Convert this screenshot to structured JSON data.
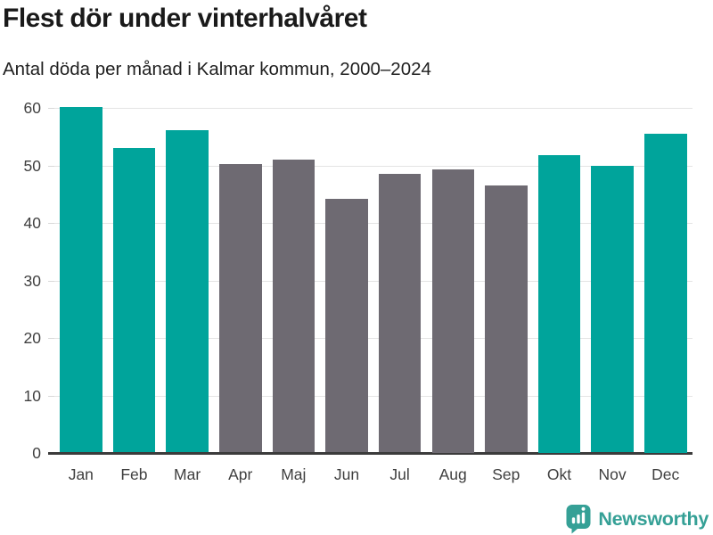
{
  "header": {
    "title": "Flest dör under vinterhalvåret",
    "subtitle": "Antal döda per månad i Kalmar kommun, 2000–2024"
  },
  "chart_data": {
    "type": "bar",
    "title": "Flest dör under vinterhalvåret",
    "subtitle": "Antal döda per månad i Kalmar kommun, 2000–2024",
    "xlabel": "",
    "ylabel": "",
    "categories": [
      "Jan",
      "Feb",
      "Mar",
      "Apr",
      "Maj",
      "Jun",
      "Jul",
      "Aug",
      "Sep",
      "Okt",
      "Nov",
      "Dec"
    ],
    "values": [
      60.1,
      52.9,
      56.0,
      50.1,
      51.0,
      44.1,
      48.5,
      49.3,
      46.4,
      51.7,
      49.8,
      55.5
    ],
    "highlighted": [
      true,
      true,
      true,
      false,
      false,
      false,
      false,
      false,
      false,
      true,
      true,
      true
    ],
    "ylim": [
      0,
      60
    ],
    "yticks": [
      0,
      10,
      20,
      30,
      40,
      50,
      60
    ],
    "grid": true,
    "legend": "none",
    "colors": {
      "highlight": "#00A49B",
      "base": "#6E6A72",
      "grid": "#E4E4E4",
      "tick": "#D8D8D8",
      "axis_line": "#3B3B3B",
      "axis_text": "#3F3F3F"
    }
  },
  "footer": {
    "brand": "Newsworthy",
    "brand_color": "#35A096",
    "logo_icon": "speech-bubble-bar-chart"
  }
}
